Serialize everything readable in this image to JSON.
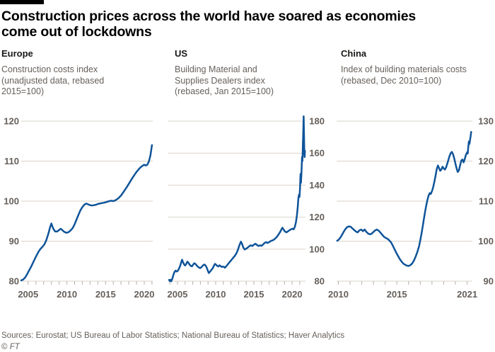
{
  "header": {
    "title_lines": [
      "Construction prices across the world have soared as economies",
      "come out of lockdowns"
    ]
  },
  "footer": {
    "sources": "Sources: Eurostat; US Bureau of Labor Statistics; National Bureau of Statistics; Haver Analytics",
    "copyright_symbol": "©",
    "copyright_name": "FT"
  },
  "theme": {
    "background": "#ffffff",
    "line_color": "#0f5499",
    "grid_color": "#dad3c8",
    "tick_color": "#b7b0a5",
    "label_color": "#66605b",
    "heading_color": "#1a1817",
    "title_color": "#000000"
  },
  "chart_data": [
    {
      "type": "line",
      "title": "Europe",
      "subtitle": "Construction costs index (unadjusted data, rebased 2015=100)",
      "ylabel_side": "left",
      "grid": true,
      "legend": "none",
      "yticks": [
        80,
        90,
        100,
        110,
        120
      ],
      "ylim": [
        80,
        120
      ],
      "xlim": [
        2004.1,
        2021.1
      ],
      "xtick_labels": [
        2005,
        2010,
        2015,
        2020
      ],
      "series": [
        [
          2004.1,
          80.2
        ],
        [
          2004.35,
          80.4
        ],
        [
          2004.6,
          80.9
        ],
        [
          2004.85,
          81.7
        ],
        [
          2005.1,
          82.6
        ],
        [
          2005.35,
          83.5
        ],
        [
          2005.6,
          84.5
        ],
        [
          2005.85,
          85.5
        ],
        [
          2006.1,
          86.5
        ],
        [
          2006.35,
          87.4
        ],
        [
          2006.6,
          88.1
        ],
        [
          2006.85,
          88.6
        ],
        [
          2007.1,
          89.2
        ],
        [
          2007.35,
          90.3
        ],
        [
          2007.6,
          91.8
        ],
        [
          2007.85,
          93.6
        ],
        [
          2008.0,
          94.4
        ],
        [
          2008.15,
          93.6
        ],
        [
          2008.3,
          92.9
        ],
        [
          2008.5,
          92.4
        ],
        [
          2008.75,
          92.4
        ],
        [
          2009.0,
          92.8
        ],
        [
          2009.2,
          93.1
        ],
        [
          2009.4,
          92.8
        ],
        [
          2009.6,
          92.4
        ],
        [
          2009.8,
          92.2
        ],
        [
          2010.0,
          92.1
        ],
        [
          2010.25,
          92.3
        ],
        [
          2010.5,
          92.7
        ],
        [
          2010.75,
          93.3
        ],
        [
          2011.0,
          94.2
        ],
        [
          2011.25,
          95.4
        ],
        [
          2011.5,
          96.6
        ],
        [
          2011.75,
          97.7
        ],
        [
          2012.0,
          98.5
        ],
        [
          2012.25,
          99.1
        ],
        [
          2012.5,
          99.4
        ],
        [
          2012.75,
          99.2
        ],
        [
          2013.0,
          99.0
        ],
        [
          2013.25,
          98.9
        ],
        [
          2013.5,
          99.0
        ],
        [
          2013.75,
          99.1
        ],
        [
          2014.0,
          99.3
        ],
        [
          2014.25,
          99.4
        ],
        [
          2014.5,
          99.5
        ],
        [
          2014.75,
          99.6
        ],
        [
          2015.0,
          99.7
        ],
        [
          2015.25,
          99.9
        ],
        [
          2015.5,
          100.0
        ],
        [
          2015.75,
          100.1
        ],
        [
          2016.0,
          100.0
        ],
        [
          2016.25,
          100.2
        ],
        [
          2016.5,
          100.5
        ],
        [
          2016.75,
          100.9
        ],
        [
          2017.0,
          101.4
        ],
        [
          2017.25,
          102.1
        ],
        [
          2017.5,
          102.8
        ],
        [
          2017.75,
          103.5
        ],
        [
          2018.0,
          104.3
        ],
        [
          2018.25,
          105.1
        ],
        [
          2018.5,
          105.9
        ],
        [
          2018.75,
          106.6
        ],
        [
          2019.0,
          107.3
        ],
        [
          2019.25,
          107.9
        ],
        [
          2019.5,
          108.4
        ],
        [
          2019.75,
          108.8
        ],
        [
          2020.0,
          109.1
        ],
        [
          2020.2,
          108.9
        ],
        [
          2020.4,
          109.1
        ],
        [
          2020.6,
          109.9
        ],
        [
          2020.8,
          111.4
        ],
        [
          2021.0,
          114.0
        ]
      ]
    },
    {
      "type": "line",
      "title": "US",
      "subtitle": "Building Material and Supplies Dealers index (rebased, Jan 2015=100)",
      "ylabel_side": "right",
      "grid": true,
      "legend": "none",
      "yticks": [
        80,
        100,
        120,
        140,
        160,
        180
      ],
      "ylim": [
        80,
        180
      ],
      "xlim": [
        2003.8,
        2021.75
      ],
      "xtick_labels": [
        2005,
        2010,
        2015,
        2020
      ],
      "series": [
        [
          2003.9,
          80.8
        ],
        [
          2004.0,
          80.1
        ],
        [
          2004.1,
          80.9
        ],
        [
          2004.18,
          79.9
        ],
        [
          2004.3,
          81.2
        ],
        [
          2004.45,
          83.6
        ],
        [
          2004.6,
          85.6
        ],
        [
          2004.75,
          86.6
        ],
        [
          2004.9,
          86.0
        ],
        [
          2005.05,
          86.5
        ],
        [
          2005.2,
          87.8
        ],
        [
          2005.35,
          89.6
        ],
        [
          2005.5,
          92.0
        ],
        [
          2005.6,
          93.4
        ],
        [
          2005.7,
          92.1
        ],
        [
          2005.85,
          90.6
        ],
        [
          2006.0,
          89.8
        ],
        [
          2006.15,
          90.8
        ],
        [
          2006.3,
          92.2
        ],
        [
          2006.45,
          91.4
        ],
        [
          2006.6,
          90.2
        ],
        [
          2006.75,
          89.5
        ],
        [
          2006.9,
          89.3
        ],
        [
          2007.05,
          90.3
        ],
        [
          2007.2,
          91.2
        ],
        [
          2007.35,
          90.8
        ],
        [
          2007.5,
          89.9
        ],
        [
          2007.65,
          89.1
        ],
        [
          2007.8,
          88.6
        ],
        [
          2007.95,
          88.2
        ],
        [
          2008.1,
          88.6
        ],
        [
          2008.25,
          89.4
        ],
        [
          2008.4,
          90.1
        ],
        [
          2008.55,
          90.4
        ],
        [
          2008.7,
          89.6
        ],
        [
          2008.85,
          88.2
        ],
        [
          2009.0,
          86.2
        ],
        [
          2009.1,
          85.1
        ],
        [
          2009.25,
          85.9
        ],
        [
          2009.4,
          86.8
        ],
        [
          2009.6,
          88.0
        ],
        [
          2009.8,
          89.9
        ],
        [
          2009.92,
          90.8
        ],
        [
          2010.05,
          90.3
        ],
        [
          2010.2,
          89.5
        ],
        [
          2010.35,
          89.2
        ],
        [
          2010.5,
          89.9
        ],
        [
          2010.65,
          89.4
        ],
        [
          2010.8,
          88.9
        ],
        [
          2010.95,
          89.1
        ],
        [
          2011.1,
          88.9
        ],
        [
          2011.2,
          88.4
        ],
        [
          2011.35,
          89.1
        ],
        [
          2011.5,
          90.0
        ],
        [
          2011.7,
          91.2
        ],
        [
          2011.9,
          92.3
        ],
        [
          2012.1,
          93.5
        ],
        [
          2012.3,
          94.7
        ],
        [
          2012.5,
          95.8
        ],
        [
          2012.7,
          97.3
        ],
        [
          2012.9,
          99.5
        ],
        [
          2013.1,
          102.4
        ],
        [
          2013.3,
          104.7
        ],
        [
          2013.45,
          103.3
        ],
        [
          2013.6,
          101.2
        ],
        [
          2013.8,
          99.8
        ],
        [
          2014.0,
          100.3
        ],
        [
          2014.2,
          101.0
        ],
        [
          2014.4,
          101.9
        ],
        [
          2014.6,
          102.4
        ],
        [
          2014.8,
          102.0
        ],
        [
          2015.0,
          102.8
        ],
        [
          2015.2,
          103.4
        ],
        [
          2015.4,
          102.6
        ],
        [
          2015.6,
          102.0
        ],
        [
          2015.8,
          102.4
        ],
        [
          2016.0,
          102.1
        ],
        [
          2016.2,
          102.9
        ],
        [
          2016.4,
          103.9
        ],
        [
          2016.6,
          104.4
        ],
        [
          2016.8,
          103.9
        ],
        [
          2017.0,
          104.4
        ],
        [
          2017.2,
          105.1
        ],
        [
          2017.4,
          105.4
        ],
        [
          2017.6,
          105.9
        ],
        [
          2017.8,
          106.7
        ],
        [
          2018.0,
          107.7
        ],
        [
          2018.2,
          109.0
        ],
        [
          2018.4,
          110.5
        ],
        [
          2018.6,
          112.3
        ],
        [
          2018.73,
          113.4
        ],
        [
          2018.88,
          112.3
        ],
        [
          2019.05,
          111.1
        ],
        [
          2019.25,
          110.5
        ],
        [
          2019.45,
          111.1
        ],
        [
          2019.65,
          111.8
        ],
        [
          2019.85,
          112.4
        ],
        [
          2020.05,
          112.8
        ],
        [
          2020.2,
          112.4
        ],
        [
          2020.35,
          113.9
        ],
        [
          2020.5,
          116.8
        ],
        [
          2020.62,
          120.8
        ],
        [
          2020.73,
          126.0
        ],
        [
          2020.82,
          131.5
        ],
        [
          2020.9,
          134.0
        ],
        [
          2020.96,
          132.6
        ],
        [
          2021.03,
          137.5
        ],
        [
          2021.1,
          147.0
        ],
        [
          2021.16,
          141.5
        ],
        [
          2021.22,
          147.5
        ],
        [
          2021.3,
          157.5
        ],
        [
          2021.35,
          155.0
        ],
        [
          2021.4,
          163.5
        ],
        [
          2021.46,
          174.0
        ],
        [
          2021.51,
          183.0
        ],
        [
          2021.56,
          172.0
        ],
        [
          2021.6,
          159.5
        ],
        [
          2021.64,
          157.5
        ],
        [
          2021.68,
          161.5
        ]
      ]
    },
    {
      "type": "line",
      "title": "China",
      "subtitle": "Index of building materials costs (rebased, Dec 2010=100)",
      "ylabel_side": "right",
      "grid": true,
      "legend": "none",
      "yticks": [
        90,
        100,
        110,
        120,
        130
      ],
      "ylim": [
        90,
        130
      ],
      "xlim": [
        2009.85,
        2021.45
      ],
      "xtick_labels": [
        2010,
        2015,
        2021
      ],
      "series": [
        [
          2009.9,
          100.1
        ],
        [
          2010.0,
          100.3
        ],
        [
          2010.15,
          100.8
        ],
        [
          2010.3,
          101.5
        ],
        [
          2010.45,
          102.3
        ],
        [
          2010.6,
          103.0
        ],
        [
          2010.75,
          103.5
        ],
        [
          2010.9,
          103.7
        ],
        [
          2011.05,
          103.6
        ],
        [
          2011.2,
          103.2
        ],
        [
          2011.35,
          102.8
        ],
        [
          2011.5,
          102.4
        ],
        [
          2011.65,
          102.2
        ],
        [
          2011.8,
          102.7
        ],
        [
          2011.95,
          102.9
        ],
        [
          2012.1,
          102.5
        ],
        [
          2012.25,
          102.9
        ],
        [
          2012.4,
          102.3
        ],
        [
          2012.55,
          101.9
        ],
        [
          2012.7,
          101.7
        ],
        [
          2012.85,
          101.9
        ],
        [
          2013.0,
          102.3
        ],
        [
          2013.15,
          102.7
        ],
        [
          2013.3,
          102.9
        ],
        [
          2013.45,
          102.6
        ],
        [
          2013.6,
          102.1
        ],
        [
          2013.75,
          101.6
        ],
        [
          2013.9,
          101.1
        ],
        [
          2014.05,
          100.8
        ],
        [
          2014.2,
          100.6
        ],
        [
          2014.35,
          100.2
        ],
        [
          2014.5,
          99.7
        ],
        [
          2014.65,
          98.9
        ],
        [
          2014.8,
          98.0
        ],
        [
          2014.95,
          97.1
        ],
        [
          2015.1,
          96.3
        ],
        [
          2015.25,
          95.5
        ],
        [
          2015.4,
          94.9
        ],
        [
          2015.55,
          94.4
        ],
        [
          2015.7,
          94.1
        ],
        [
          2015.85,
          93.9
        ],
        [
          2016.0,
          93.8
        ],
        [
          2016.15,
          94.0
        ],
        [
          2016.3,
          94.4
        ],
        [
          2016.45,
          95.1
        ],
        [
          2016.6,
          96.1
        ],
        [
          2016.75,
          97.3
        ],
        [
          2016.9,
          98.8
        ],
        [
          2017.0,
          100.2
        ],
        [
          2017.1,
          101.8
        ],
        [
          2017.2,
          103.6
        ],
        [
          2017.3,
          105.4
        ],
        [
          2017.4,
          107.2
        ],
        [
          2017.5,
          108.8
        ],
        [
          2017.6,
          110.2
        ],
        [
          2017.7,
          111.3
        ],
        [
          2017.8,
          112.0
        ],
        [
          2017.9,
          111.8
        ],
        [
          2018.0,
          112.5
        ],
        [
          2018.1,
          113.5
        ],
        [
          2018.2,
          114.8
        ],
        [
          2018.3,
          116.3
        ],
        [
          2018.4,
          117.9
        ],
        [
          2018.5,
          118.9
        ],
        [
          2018.6,
          118.3
        ],
        [
          2018.7,
          117.6
        ],
        [
          2018.8,
          117.9
        ],
        [
          2018.9,
          118.6
        ],
        [
          2019.0,
          118.2
        ],
        [
          2019.1,
          117.9
        ],
        [
          2019.2,
          118.4
        ],
        [
          2019.3,
          119.3
        ],
        [
          2019.4,
          120.3
        ],
        [
          2019.5,
          121.3
        ],
        [
          2019.6,
          122.0
        ],
        [
          2019.7,
          122.3
        ],
        [
          2019.8,
          121.7
        ],
        [
          2019.9,
          120.7
        ],
        [
          2020.0,
          119.4
        ],
        [
          2020.1,
          118.2
        ],
        [
          2020.2,
          117.3
        ],
        [
          2020.3,
          117.7
        ],
        [
          2020.4,
          118.9
        ],
        [
          2020.5,
          120.1
        ],
        [
          2020.6,
          120.4
        ],
        [
          2020.7,
          119.7
        ],
        [
          2020.8,
          120.5
        ],
        [
          2020.9,
          121.6
        ],
        [
          2021.0,
          122.2
        ],
        [
          2021.05,
          121.9
        ],
        [
          2021.1,
          123.5
        ],
        [
          2021.15,
          124.9
        ],
        [
          2021.2,
          124.3
        ],
        [
          2021.3,
          126.2
        ],
        [
          2021.35,
          127.3
        ]
      ]
    }
  ]
}
